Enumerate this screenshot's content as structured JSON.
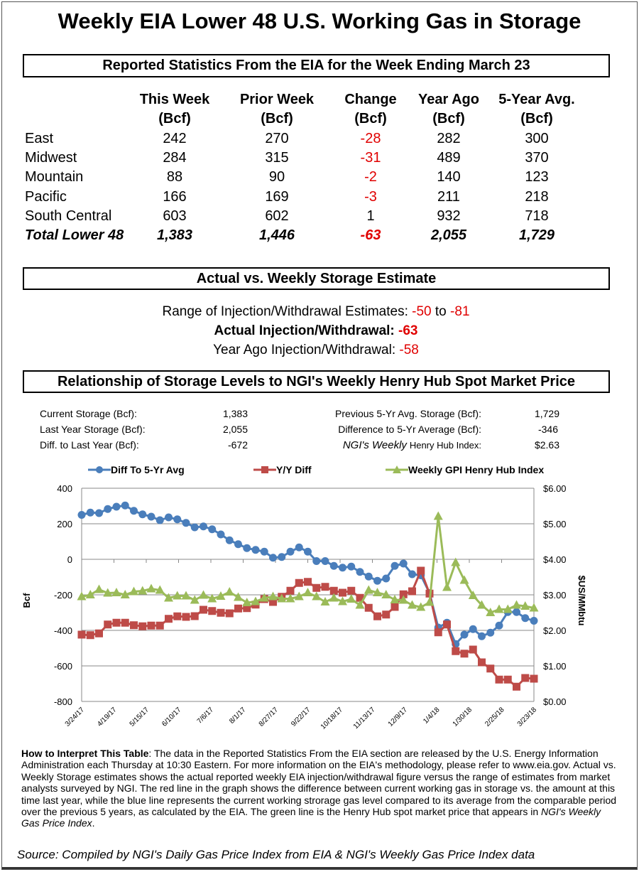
{
  "title": "Weekly EIA Lower 48 U.S. Working Gas in Storage",
  "stats_section": {
    "heading": "Reported Statistics From the EIA for the Week Ending March 23",
    "columns": [
      [
        "This Week",
        "(Bcf)"
      ],
      [
        "Prior Week",
        "(Bcf)"
      ],
      [
        "Change",
        "(Bcf)"
      ],
      [
        "Year Ago",
        "(Bcf)"
      ],
      [
        "5-Year Avg.",
        "(Bcf)"
      ]
    ],
    "rows": [
      {
        "region": "East",
        "values": [
          "242",
          "270",
          "-28",
          "282",
          "300"
        ]
      },
      {
        "region": "Midwest",
        "values": [
          "284",
          "315",
          "-31",
          "489",
          "370"
        ]
      },
      {
        "region": "Mountain",
        "values": [
          "88",
          "90",
          "-2",
          "140",
          "123"
        ]
      },
      {
        "region": "Pacific",
        "values": [
          "166",
          "169",
          "-3",
          "211",
          "218"
        ]
      },
      {
        "region": "South Central",
        "values": [
          "603",
          "602",
          "1",
          "932",
          "718"
        ]
      },
      {
        "region": "Total Lower 48",
        "values": [
          "1,383",
          "1,446",
          "-63",
          "2,055",
          "1,729"
        ]
      }
    ]
  },
  "estimate_section": {
    "heading": "Actual vs. Weekly Storage Estimate",
    "range_label": "Range of Injection/Withdrawal Estimates:",
    "range_low": "-50",
    "range_to": "to",
    "range_high": "-81",
    "actual_label": "Actual Injection/Withdrawal:",
    "actual_value": "-63",
    "year_ago_label": "Year Ago Injection/Withdrawal:",
    "year_ago_value": "-58"
  },
  "relationship_section": {
    "heading": "Relationship of Storage Levels to NGI's Weekly Henry Hub Spot Market Price",
    "left": [
      {
        "label": "Current Storage (Bcf):",
        "value": "1,383"
      },
      {
        "label": "Last Year Storage (Bcf):",
        "value": "2,055"
      },
      {
        "label": "Diff. to Last Year (Bcf):",
        "value": "-672"
      }
    ],
    "right": [
      {
        "label": "Previous 5-Yr Avg. Storage (Bcf):",
        "value": "1,729"
      },
      {
        "label": "Difference to 5-Yr Average (Bcf):",
        "value": "-346"
      },
      {
        "label_italic": "NGI's Weekly",
        "label": "Henry Hub Index:",
        "value": "$2.63"
      }
    ]
  },
  "chart_data": {
    "type": "line",
    "ylabel": "Bcf",
    "y2label": "$US/MMbtu",
    "ylim": [
      -800,
      400
    ],
    "yticks": [
      "400",
      "200",
      "0",
      "-200",
      "-400",
      "-600",
      "-800"
    ],
    "y2lim": [
      0,
      6
    ],
    "y2ticks": [
      "$6.00",
      "$5.00",
      "$4.00",
      "$3.00",
      "$2.00",
      "$1.00",
      "$0.00"
    ],
    "xlim": [
      "2017-03-24",
      "2018-03-23"
    ],
    "xticks": [
      [
        "2017-03-24",
        "3/24/17"
      ],
      [
        "2017-04-19",
        "4/19/17"
      ],
      [
        "2017-05-15",
        "5/15/17"
      ],
      [
        "2017-06-10",
        "6/10/17"
      ],
      [
        "2017-07-06",
        "7/6/17"
      ],
      [
        "2017-08-01",
        "8/1/17"
      ],
      [
        "2017-08-27",
        "8/27/17"
      ],
      [
        "2017-09-22",
        "9/22/17"
      ],
      [
        "2017-10-18",
        "10/18/17"
      ],
      [
        "2017-11-13",
        "11/13/17"
      ],
      [
        "2017-12-09",
        "12/9/17"
      ],
      [
        "2018-01-04",
        "1/4/18"
      ],
      [
        "2018-01-30",
        "1/30/18"
      ],
      [
        "2018-02-25",
        "2/25/18"
      ],
      [
        "2018-03-23",
        "3/23/18"
      ]
    ],
    "grid": "horizontal",
    "legend": "top",
    "x": [
      "2017-03-24",
      "2017-03-31",
      "2017-04-07",
      "2017-04-14",
      "2017-04-21",
      "2017-04-28",
      "2017-05-05",
      "2017-05-12",
      "2017-05-19",
      "2017-05-26",
      "2017-06-02",
      "2017-06-09",
      "2017-06-16",
      "2017-06-23",
      "2017-06-30",
      "2017-07-07",
      "2017-07-14",
      "2017-07-21",
      "2017-07-28",
      "2017-08-04",
      "2017-08-11",
      "2017-08-18",
      "2017-08-25",
      "2017-09-01",
      "2017-09-08",
      "2017-09-15",
      "2017-09-22",
      "2017-09-29",
      "2017-10-06",
      "2017-10-13",
      "2017-10-20",
      "2017-10-27",
      "2017-11-03",
      "2017-11-10",
      "2017-11-17",
      "2017-11-24",
      "2017-12-01",
      "2017-12-08",
      "2017-12-15",
      "2017-12-22",
      "2017-12-29",
      "2018-01-05",
      "2018-01-12",
      "2018-01-19",
      "2018-01-26",
      "2018-02-02",
      "2018-02-09",
      "2018-02-16",
      "2018-02-23",
      "2018-03-02",
      "2018-03-09",
      "2018-03-16",
      "2018-03-23"
    ],
    "series": [
      {
        "name": "Diff To 5-Yr Avg",
        "axis": "left",
        "color": "#4a7ebb",
        "marker": "circle",
        "values": [
          250,
          263,
          260,
          283,
          296,
          303,
          273,
          253,
          240,
          220,
          236,
          225,
          205,
          180,
          185,
          169,
          140,
          107,
          85,
          63,
          53,
          43,
          9,
          13,
          43,
          67,
          43,
          -10,
          -10,
          -37,
          -47,
          -41,
          -71,
          -97,
          -121,
          -108,
          -37,
          -24,
          -84,
          -90,
          -190,
          -384,
          -357,
          -477,
          -424,
          -393,
          -433,
          -413,
          -373,
          -297,
          -297,
          -331,
          -346
        ]
      },
      {
        "name": "Y/Y Diff",
        "axis": "left",
        "color": "#be4b48",
        "marker": "square",
        "values": [
          -424,
          -427,
          -417,
          -367,
          -357,
          -357,
          -371,
          -377,
          -373,
          -373,
          -335,
          -321,
          -324,
          -320,
          -284,
          -291,
          -301,
          -304,
          -277,
          -275,
          -255,
          -224,
          -240,
          -211,
          -177,
          -133,
          -127,
          -161,
          -155,
          -177,
          -188,
          -177,
          -217,
          -273,
          -321,
          -311,
          -268,
          -197,
          -180,
          -64,
          -193,
          -411,
          -367,
          -517,
          -531,
          -508,
          -580,
          -615,
          -677,
          -677,
          -717,
          -668,
          -672
        ]
      },
      {
        "name": "Weekly GPI Henry Hub Index",
        "axis": "right",
        "color": "#9bbb59",
        "marker": "triangle",
        "values": [
          2.95,
          3.0,
          3.15,
          3.05,
          3.06,
          3.0,
          3.09,
          3.11,
          3.17,
          3.13,
          2.91,
          2.97,
          2.97,
          2.85,
          2.99,
          2.89,
          2.96,
          3.08,
          2.93,
          2.78,
          2.81,
          2.91,
          2.95,
          2.89,
          2.89,
          2.95,
          3.06,
          2.95,
          2.8,
          2.91,
          2.81,
          2.88,
          2.71,
          3.13,
          3.06,
          3.0,
          2.86,
          2.85,
          2.71,
          2.65,
          2.79,
          5.21,
          3.21,
          3.91,
          3.41,
          2.98,
          2.71,
          2.5,
          2.59,
          2.59,
          2.71,
          2.68,
          2.63
        ]
      }
    ]
  },
  "notes": {
    "heading": "How to Interpret This Table",
    "body": ": The data in the Reported Statistics From the EIA section are released by the U.S. Energy Information Administration each Thursday at 10:30 Eastern. For more information on the EIA's methodology, please refer to www.eia.gov. Actual vs. Weekly Storage estimates shows the actual reported weekly EIA injection/withdrawal figure versus the range of estimates from market analysts surveyed by NGI. The red line in the graph shows the difference between current working gas in storage vs. the amount at this time last year, while the blue line represents the current working strorage gas level  compared to its average from the comparable period over the previous 5 years, as calculated by the EIA. The green line is the Henry Hub spot market price that appears in ",
    "italic_tail": "NGI's Weekly Gas Price Index",
    "end": "."
  },
  "source": "Source: Compiled by NGI's Daily Gas Price Index from EIA & NGI's Weekly Gas Price Index data"
}
